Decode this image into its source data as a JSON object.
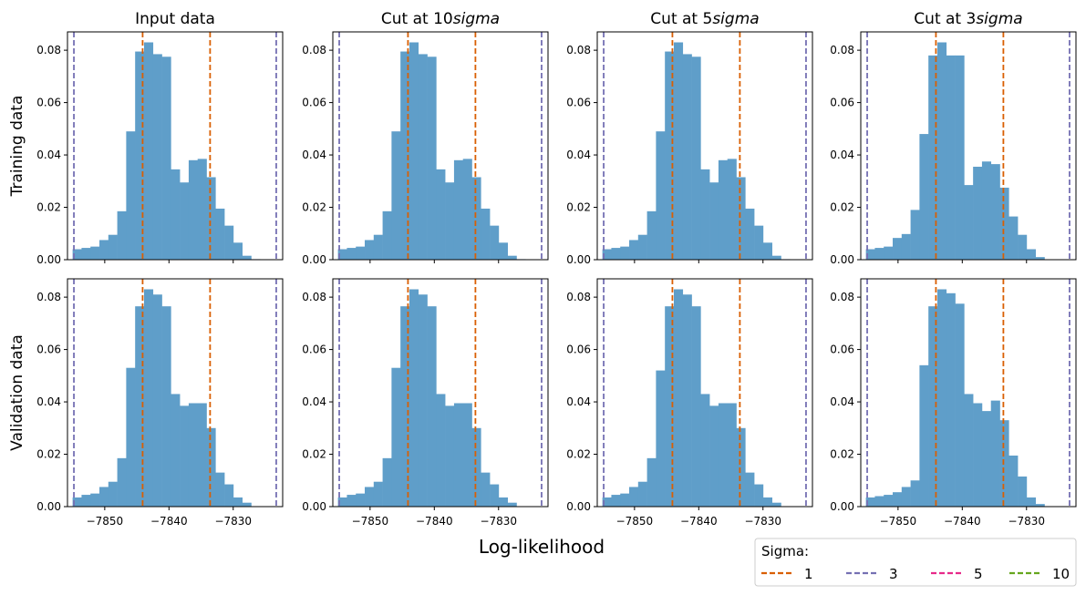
{
  "figure": {
    "xlabel": "Log-likelihood",
    "row_labels": [
      "Training data",
      "Validation data"
    ],
    "col_titles": [
      {
        "prefix": "Input data",
        "italic": ""
      },
      {
        "prefix": "Cut at 10",
        "italic": "sigma"
      },
      {
        "prefix": "Cut at 5",
        "italic": "sigma"
      },
      {
        "prefix": "Cut at 3",
        "italic": "sigma"
      }
    ]
  },
  "legend": {
    "title": "Sigma:",
    "entries": [
      {
        "label": "1",
        "color": "#d95f02"
      },
      {
        "label": "3",
        "color": "#7570b3"
      },
      {
        "label": "5",
        "color": "#e7298a"
      },
      {
        "label": "10",
        "color": "#66a61e"
      }
    ]
  },
  "chart_data": {
    "type": "histogram",
    "bar_color": "#5f9ec9",
    "xlim": [
      -7855.8,
      -7822.3
    ],
    "ylim": [
      0,
      0.087
    ],
    "xticks": [
      -7850,
      -7840,
      -7830
    ],
    "yticks": [
      0.0,
      0.02,
      0.04,
      0.06,
      0.08
    ],
    "bin_edges": [
      -7855.0,
      -7853.61,
      -7852.22,
      -7850.83,
      -7849.44,
      -7848.05,
      -7846.66,
      -7845.27,
      -7843.88,
      -7842.49,
      -7841.1,
      -7839.71,
      -7838.32,
      -7836.93,
      -7835.54,
      -7834.15,
      -7832.76,
      -7831.37,
      -7829.98,
      -7828.59,
      -7827.2,
      -7825.81,
      -7824.42,
      -7823.03
    ],
    "vlines": [
      {
        "sigma": "1",
        "x": -7844.1,
        "color": "#d95f02"
      },
      {
        "sigma": "1",
        "x": -7833.6,
        "color": "#d95f02"
      },
      {
        "sigma": "3",
        "x": -7854.8,
        "color": "#7570b3"
      },
      {
        "sigma": "3",
        "x": -7823.3,
        "color": "#7570b3"
      }
    ],
    "panels": [
      {
        "row": "Training data",
        "col": "Input data",
        "values": [
          0.004,
          0.0045,
          0.005,
          0.0075,
          0.0095,
          0.0185,
          0.049,
          0.0795,
          0.083,
          0.0785,
          0.0775,
          0.0345,
          0.0295,
          0.038,
          0.0385,
          0.0315,
          0.0195,
          0.013,
          0.0065,
          0.0015,
          0.0002,
          0.0,
          0.0
        ]
      },
      {
        "row": "Training data",
        "col": "Cut at 10sigma",
        "values": [
          0.004,
          0.0045,
          0.005,
          0.0075,
          0.0095,
          0.0185,
          0.049,
          0.0795,
          0.083,
          0.0785,
          0.0775,
          0.0345,
          0.0295,
          0.038,
          0.0385,
          0.0315,
          0.0195,
          0.013,
          0.0065,
          0.0015,
          0.0002,
          0.0,
          0.0
        ]
      },
      {
        "row": "Training data",
        "col": "Cut at 5sigma",
        "values": [
          0.004,
          0.0045,
          0.005,
          0.0075,
          0.0095,
          0.0185,
          0.049,
          0.0795,
          0.083,
          0.0785,
          0.0775,
          0.0345,
          0.0295,
          0.038,
          0.0385,
          0.0315,
          0.0195,
          0.013,
          0.0065,
          0.0015,
          0.0002,
          0.0,
          0.0
        ]
      },
      {
        "row": "Training data",
        "col": "Cut at 3sigma",
        "values": [
          0.004,
          0.0045,
          0.005,
          0.0083,
          0.0098,
          0.019,
          0.048,
          0.078,
          0.083,
          0.078,
          0.078,
          0.0285,
          0.0355,
          0.0375,
          0.0365,
          0.0275,
          0.0165,
          0.0095,
          0.004,
          0.001,
          0.0,
          0.0,
          0.0
        ]
      },
      {
        "row": "Validation data",
        "col": "Input data",
        "values": [
          0.0035,
          0.0045,
          0.005,
          0.0075,
          0.0095,
          0.0185,
          0.053,
          0.0765,
          0.083,
          0.081,
          0.0765,
          0.043,
          0.0385,
          0.0395,
          0.0395,
          0.03,
          0.013,
          0.0085,
          0.0035,
          0.0015,
          0.0,
          0.0,
          0.0
        ]
      },
      {
        "row": "Validation data",
        "col": "Cut at 10sigma",
        "values": [
          0.0035,
          0.0045,
          0.005,
          0.0075,
          0.0095,
          0.0185,
          0.053,
          0.0765,
          0.083,
          0.081,
          0.0765,
          0.043,
          0.0385,
          0.0395,
          0.0395,
          0.03,
          0.013,
          0.0085,
          0.0035,
          0.0015,
          0.0,
          0.0,
          0.0
        ]
      },
      {
        "row": "Validation data",
        "col": "Cut at 5sigma",
        "values": [
          0.0035,
          0.0045,
          0.005,
          0.0075,
          0.0095,
          0.0185,
          0.052,
          0.0765,
          0.083,
          0.081,
          0.0765,
          0.043,
          0.0385,
          0.0395,
          0.0395,
          0.03,
          0.013,
          0.0085,
          0.0035,
          0.0015,
          0.0,
          0.0,
          0.0
        ]
      },
      {
        "row": "Validation data",
        "col": "Cut at 3sigma",
        "values": [
          0.0035,
          0.004,
          0.0045,
          0.0055,
          0.0075,
          0.01,
          0.054,
          0.0765,
          0.083,
          0.0815,
          0.0775,
          0.043,
          0.0395,
          0.0365,
          0.0405,
          0.033,
          0.0195,
          0.0115,
          0.0035,
          0.001,
          0.0,
          0.0,
          0.0
        ]
      }
    ]
  }
}
